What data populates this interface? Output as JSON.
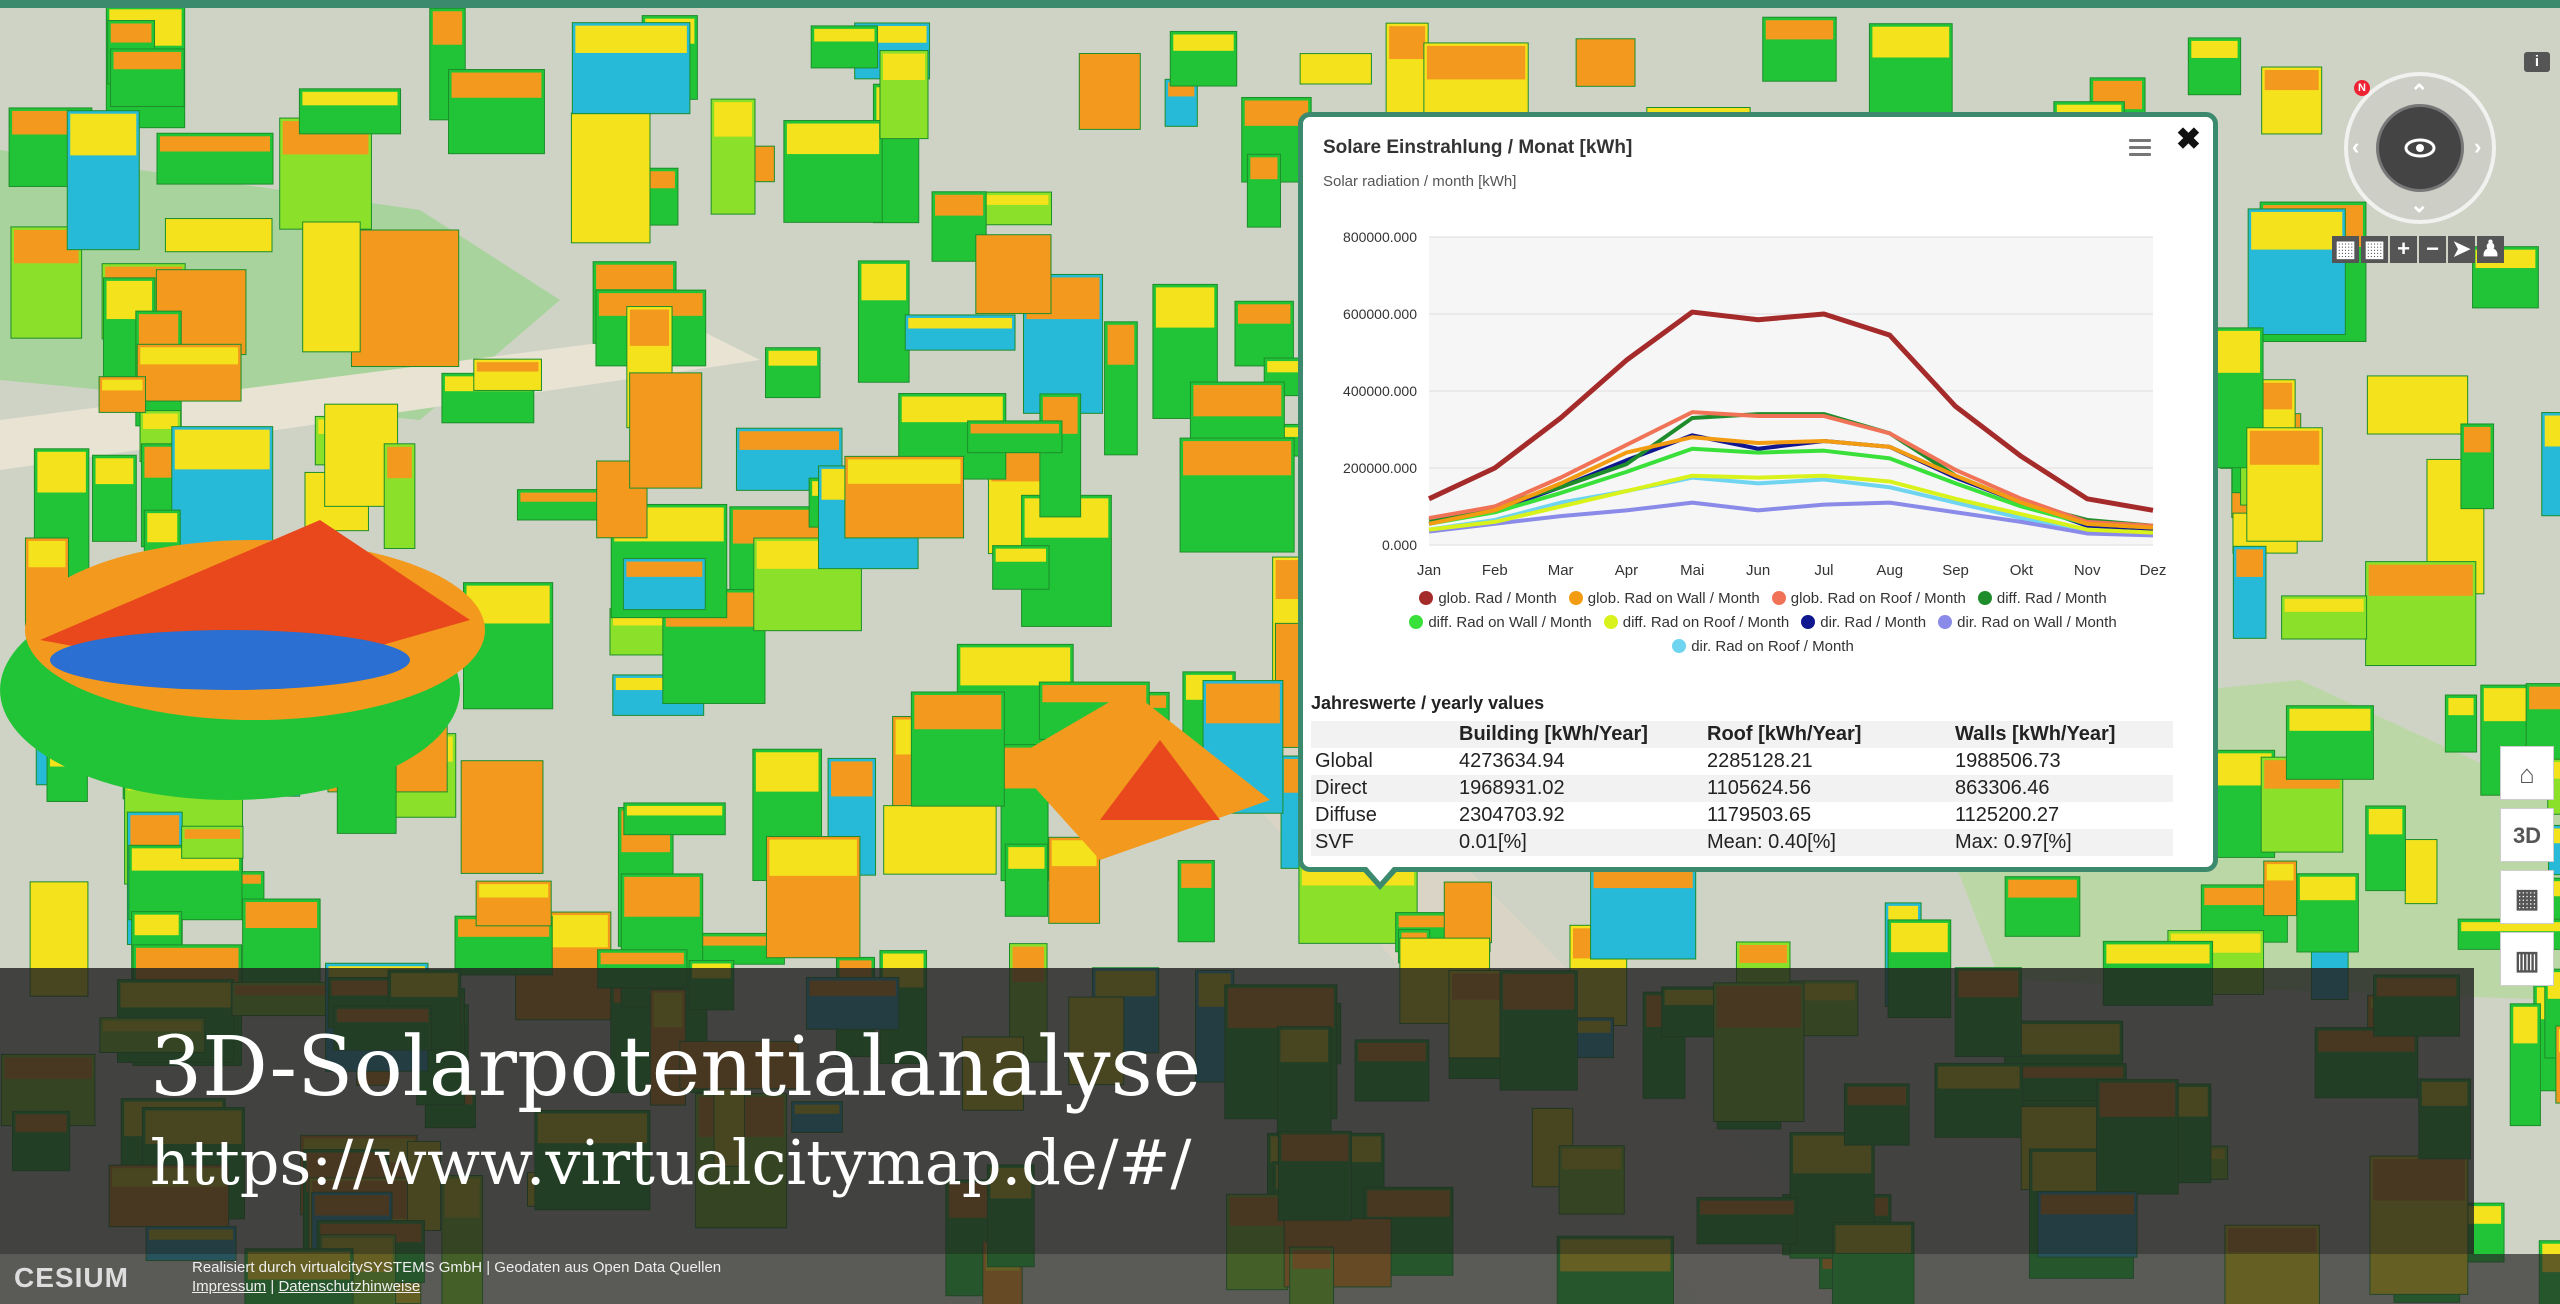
{
  "map": {
    "colors": {
      "green": "#22c437",
      "lime": "#8be02a",
      "yellow": "#f4e21c",
      "orange": "#f39a1e",
      "red": "#e8481b",
      "cyan": "#27b9d8",
      "blue": "#2a6fd1",
      "street": "#d8d4c8",
      "park": "#9fd29a"
    }
  },
  "popup": {
    "title": "Solare Einstrahlung / Monat [kWh]",
    "subtitle": "Solar radiation / month [kWh]",
    "close_label": "✖",
    "menu_icon": "menu-icon",
    "yearly_title": "Jahreswerte / yearly values",
    "table": {
      "headers": [
        "",
        "Building [kWh/Year]",
        "Roof [kWh/Year]",
        "Walls [kWh/Year]"
      ],
      "rows": [
        [
          "Global",
          "4273634.94",
          "2285128.21",
          "1988506.73"
        ],
        [
          "Direct",
          "1968931.02",
          "1105624.56",
          "863306.46"
        ],
        [
          "Diffuse",
          "2304703.92",
          "1179503.65",
          "1125200.27"
        ],
        [
          "SVF",
          "0.01[%]",
          "Mean: 0.40[%]",
          "Max: 0.97[%]"
        ]
      ]
    }
  },
  "chart_data": {
    "type": "line",
    "title": "Solare Einstrahlung / Monat [kWh]",
    "subtitle": "Solar radiation / month [kWh]",
    "categories": [
      "Jan",
      "Feb",
      "Mar",
      "Apr",
      "Mai",
      "Jun",
      "Jul",
      "Aug",
      "Sep",
      "Okt",
      "Nov",
      "Dez"
    ],
    "y_tick_labels": [
      "800000.000",
      "600000.000",
      "400000.000",
      "200000.000",
      "0.000"
    ],
    "ylim": [
      0,
      800000
    ],
    "grid": true,
    "legend_position": "bottom",
    "series": [
      {
        "name": "glob. Rad / Month",
        "color": "#a52a2a",
        "values": [
          120000,
          200000,
          330000,
          480000,
          605000,
          585000,
          600000,
          545000,
          360000,
          230000,
          120000,
          90000
        ]
      },
      {
        "name": "glob. Rad on Wall / Month",
        "color": "#f39c12",
        "values": [
          55000,
          90000,
          160000,
          240000,
          280000,
          265000,
          270000,
          255000,
          180000,
          110000,
          55000,
          45000
        ]
      },
      {
        "name": "glob. Rad on Roof / Month",
        "color": "#f07357",
        "values": [
          70000,
          100000,
          175000,
          260000,
          345000,
          335000,
          335000,
          290000,
          195000,
          120000,
          60000,
          50000
        ]
      },
      {
        "name": "diff. Rad / Month",
        "color": "#1e8c2a",
        "values": [
          65000,
          100000,
          150000,
          210000,
          330000,
          340000,
          340000,
          290000,
          180000,
          110000,
          65000,
          50000
        ]
      },
      {
        "name": "diff. Rad on Wall / Month",
        "color": "#39e039",
        "values": [
          55000,
          85000,
          135000,
          190000,
          250000,
          240000,
          245000,
          225000,
          160000,
          100000,
          55000,
          45000
        ]
      },
      {
        "name": "diff. Rad on Roof / Month",
        "color": "#d9f21b",
        "values": [
          40000,
          60000,
          100000,
          140000,
          180000,
          175000,
          180000,
          165000,
          120000,
          80000,
          40000,
          32000
        ]
      },
      {
        "name": "dir. Rad / Month",
        "color": "#101590",
        "values": [
          55000,
          90000,
          150000,
          220000,
          285000,
          250000,
          270000,
          255000,
          175000,
          110000,
          50000,
          40000
        ]
      },
      {
        "name": "dir. Rad on Wall / Month",
        "color": "#8a8ae8",
        "values": [
          35000,
          55000,
          75000,
          90000,
          110000,
          90000,
          105000,
          110000,
          85000,
          60000,
          30000,
          25000
        ]
      },
      {
        "name": "dir. Rad on Roof / Month",
        "color": "#6fd4f0",
        "values": [
          40000,
          65000,
          110000,
          140000,
          175000,
          160000,
          170000,
          150000,
          110000,
          70000,
          38000,
          30000
        ]
      }
    ]
  },
  "nav": {
    "info_label": "i",
    "compass_icon": "compass-icon",
    "buttons": [
      "▦",
      "▦",
      "+",
      "−",
      "➤",
      "♟"
    ],
    "side_buttons": [
      "⌂",
      "3D",
      "▦",
      "▥"
    ]
  },
  "banner": {
    "title": "3D-Solarpotentialanalyse",
    "url": "https://www.virtualcitymap.de/#/"
  },
  "footer": {
    "logo": "CESIUM",
    "credit_line": "Realisiert durch virtualcitySYSTEMS GmbH | Geodaten aus Open Data Quellen",
    "impressum": "Impressum",
    "separator": "|",
    "datenschutz": "Datenschutzhinweise"
  }
}
